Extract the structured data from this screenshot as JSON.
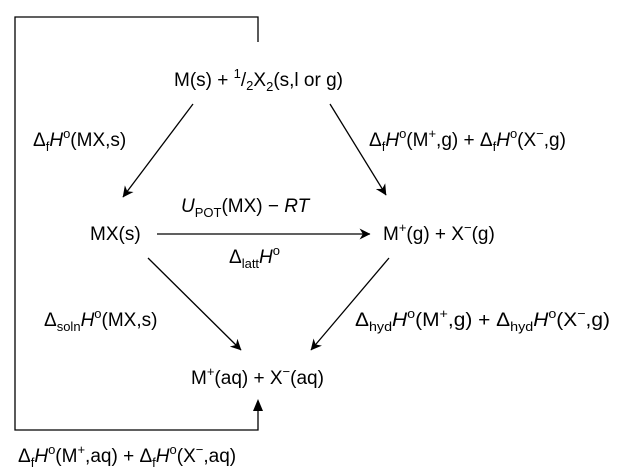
{
  "nodes": {
    "elements": {
      "lead": "M(s) + ",
      "frac_num": "1",
      "frac_slash": "/",
      "frac_den": "2",
      "x_sym": "X",
      "x_sub": "2",
      "tail": "(s,l or g)"
    },
    "solid": "MX(s)",
    "gas": {
      "cation": "M",
      "cation_charge": "+",
      "cation_state": "(g) + X",
      "anion_charge": "−",
      "anion_state": "(g)"
    },
    "aq": {
      "cation": "M",
      "cation_charge": "+",
      "cation_state": "(aq) + X",
      "anion_charge": "−",
      "anion_state": "(aq)"
    }
  },
  "labels": {
    "formation_mx": {
      "delta": "Δ",
      "sub": "f",
      "H": "H",
      "deg": "o",
      "rest": "(MX,s)"
    },
    "formation_ions_gas": {
      "d1": "Δ",
      "s1": "f",
      "H1": "H",
      "o1": "o",
      "r1a": "(M",
      "c1": "+",
      "r1b": ",g) + ",
      "d2": "Δ",
      "s2": "f",
      "H2": "H",
      "o2": "o",
      "r2a": "(X",
      "c2": "−",
      "r2b": ",g)"
    },
    "lattice_top": {
      "U": "U",
      "sub": "POT",
      "mid": "(MX) − ",
      "RT": "RT"
    },
    "lattice_bottom": {
      "delta": "Δ",
      "sub": "latt",
      "H": "H",
      "deg": "o"
    },
    "solution": {
      "delta": "Δ",
      "sub": "soln",
      "H": "H",
      "deg": "o",
      "rest": "(MX,s)"
    },
    "hydration": {
      "d1": "Δ",
      "s1": "hyd",
      "H1": "H",
      "o1": "o",
      "r1a": "(M",
      "c1": "+",
      "r1b": ",g) + ",
      "d2": "Δ",
      "s2": "hyd",
      "H2": "H",
      "o2": "o",
      "r2a": "(X",
      "c2": "−",
      "r2b": ",g)"
    },
    "formation_ions_aq": {
      "d1": "Δ",
      "s1": "f",
      "H1": "H",
      "o1": "o",
      "r1a": "(M",
      "c1": "+",
      "r1b": ",aq) + ",
      "d2": "Δ",
      "s2": "f",
      "H2": "H",
      "o2": "o",
      "r2a": "(X",
      "c2": "−",
      "r2b": ",aq)"
    }
  }
}
